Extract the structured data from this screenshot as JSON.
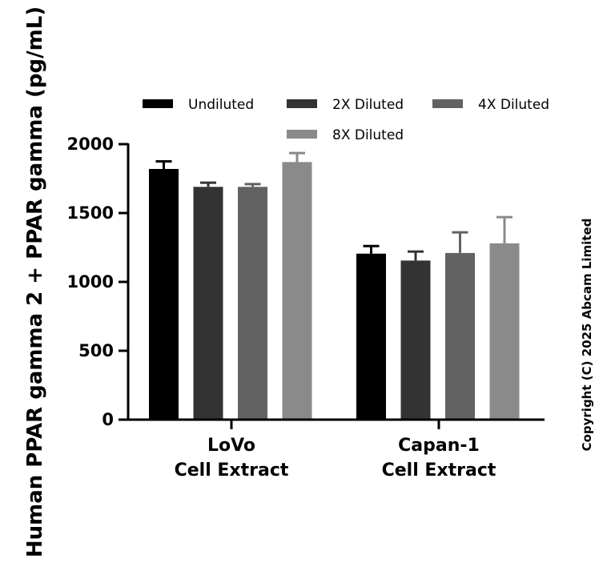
{
  "chart_data": {
    "type": "bar",
    "title": "",
    "xlabel": "",
    "ylabel": "Human PPAR gamma 2 + PPAR gamma (pg/mL)",
    "ylim": [
      0,
      2000
    ],
    "yticks": [
      0,
      500,
      1000,
      1500,
      2000
    ],
    "categories": [
      {
        "line1": "LoVo",
        "line2": "Cell Extract"
      },
      {
        "line1": "Capan-1",
        "line2": "Cell Extract"
      }
    ],
    "series": [
      {
        "name": "Undiluted",
        "color": "#000000",
        "values": [
          1820,
          1205
        ],
        "errors": [
          55,
          55
        ]
      },
      {
        "name": "2X Diluted",
        "color": "#333333",
        "values": [
          1690,
          1155
        ],
        "errors": [
          30,
          65
        ]
      },
      {
        "name": "4X Diluted",
        "color": "#626262",
        "values": [
          1690,
          1210
        ],
        "errors": [
          20,
          150
        ]
      },
      {
        "name": "8X Diluted",
        "color": "#8a8a8a",
        "values": [
          1870,
          1280
        ],
        "errors": [
          65,
          190
        ]
      }
    ],
    "legend_position": "top",
    "grid": false
  },
  "copyright": "Copyright (C) 2025 Abcam Limited"
}
